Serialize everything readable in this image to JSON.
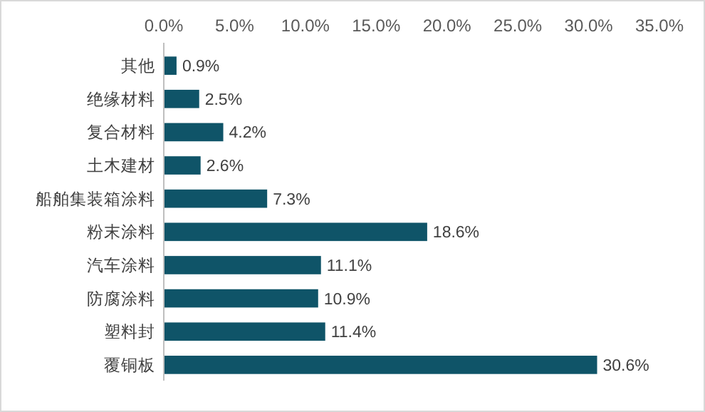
{
  "chart_data": {
    "type": "bar",
    "orientation": "horizontal",
    "categories": [
      "其他",
      "绝缘材料",
      "复合材料",
      "土木建材",
      "船舶集装箱涂料",
      "粉末涂料",
      "汽车涂料",
      "防腐涂料",
      "塑料封",
      "覆铜板"
    ],
    "values": [
      0.9,
      2.5,
      4.2,
      2.6,
      7.3,
      18.6,
      11.1,
      10.9,
      11.4,
      30.6
    ],
    "value_labels": [
      "0.9%",
      "2.5%",
      "4.2%",
      "2.6%",
      "7.3%",
      "18.6%",
      "11.1%",
      "10.9%",
      "11.4%",
      "30.6%"
    ],
    "color": "#0f5468",
    "xlim": [
      0,
      35
    ],
    "xticks": [
      {
        "value": 0,
        "label": "0.0%"
      },
      {
        "value": 5,
        "label": "5.0%"
      },
      {
        "value": 10,
        "label": "10.0%"
      },
      {
        "value": 15,
        "label": "15.0%"
      },
      {
        "value": 20,
        "label": "20.0%"
      },
      {
        "value": 25,
        "label": "25.0%"
      },
      {
        "value": 30,
        "label": "30.0%"
      },
      {
        "value": 35,
        "label": "35.0%"
      }
    ],
    "grid": false
  }
}
